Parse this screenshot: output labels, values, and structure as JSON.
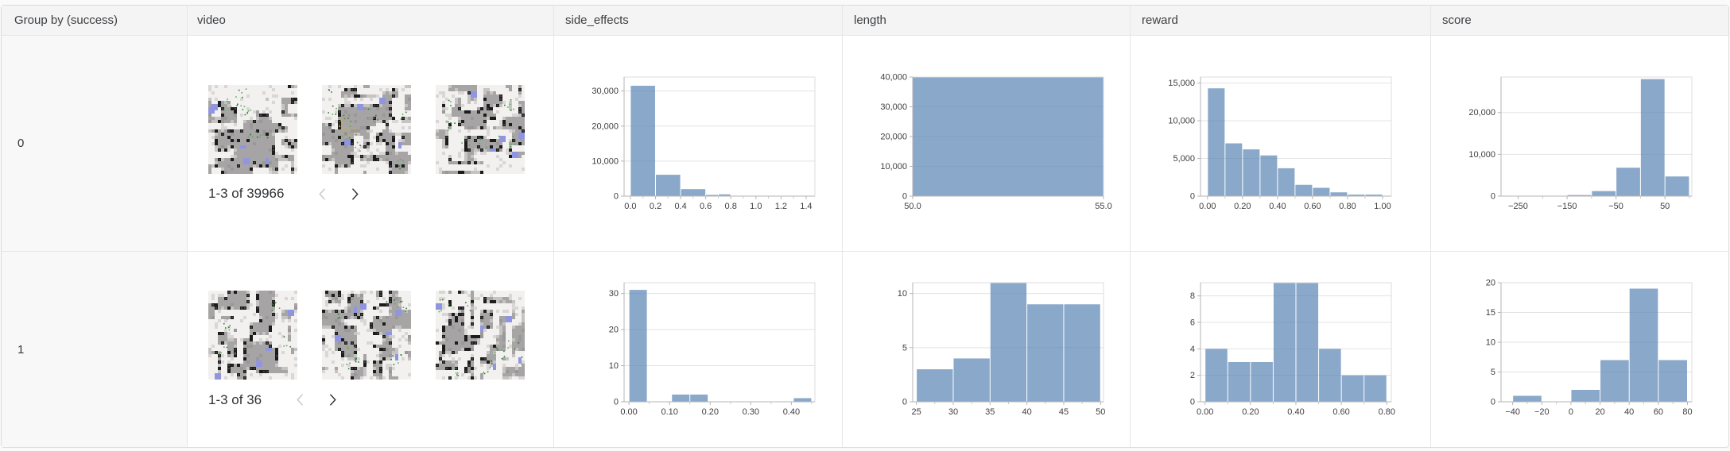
{
  "columns": [
    {
      "label": "Group by (success)"
    },
    {
      "label": "video"
    },
    {
      "label": "side_effects"
    },
    {
      "label": "length"
    },
    {
      "label": "reward"
    },
    {
      "label": "score"
    }
  ],
  "colors": {
    "bar": "#5d87b6",
    "bar_opacity": 0.72,
    "header_bg": "#f4f4f5",
    "group_col_bg": "#f8f8f8",
    "cell_border": "#e6e6e6",
    "axis": "#b5b5b5",
    "grid": "#e3e3e3",
    "tick_text": "#3f3f3f",
    "thumb_blue": "#9095e2",
    "thumb_gray": "#a7a4a5"
  },
  "rows": [
    {
      "group": "0",
      "video": {
        "pagination": "1-3 of 39966",
        "thumbnails": 3,
        "prev_enabled": false,
        "next_enabled": true
      },
      "charts": {
        "side_effects": {
          "type": "histogram",
          "xdomain": [
            -0.05,
            1.47
          ],
          "ymax": 34000,
          "bars": [
            [
              0,
              0.2,
              31500
            ],
            [
              0.2,
              0.4,
              6100
            ],
            [
              0.4,
              0.6,
              2000
            ],
            [
              0.6,
              0.7,
              350
            ],
            [
              0.7,
              0.8,
              500
            ]
          ],
          "yticks": [
            [
              0,
              "0"
            ],
            [
              10000,
              "10,000"
            ],
            [
              20000,
              "20,000"
            ],
            [
              30000,
              "30,000"
            ]
          ],
          "xticks": [
            [
              0,
              "0.0"
            ],
            [
              0.2,
              "0.2"
            ],
            [
              0.4,
              "0.4"
            ],
            [
              0.6,
              "0.6"
            ],
            [
              0.8,
              "0.8"
            ],
            [
              1.0,
              "1.0"
            ],
            [
              1.2,
              "1.2"
            ],
            [
              1.4,
              "1.4"
            ]
          ],
          "minor": true
        },
        "length": {
          "type": "histogram",
          "xdomain": [
            50,
            55
          ],
          "ymax": 40000,
          "bars": [
            [
              50,
              55,
              40000
            ]
          ],
          "yticks": [
            [
              0,
              "0"
            ],
            [
              10000,
              "10,000"
            ],
            [
              20000,
              "20,000"
            ],
            [
              30000,
              "30,000"
            ],
            [
              40000,
              "40,000"
            ]
          ],
          "xticks": [
            [
              50,
              "50.0"
            ],
            [
              55,
              "55.0"
            ]
          ],
          "minor": false
        },
        "reward": {
          "type": "histogram",
          "xdomain": [
            -0.04,
            1.05
          ],
          "ymax": 15800,
          "bars": [
            [
              0,
              0.1,
              14300
            ],
            [
              0.1,
              0.2,
              7000
            ],
            [
              0.2,
              0.3,
              6200
            ],
            [
              0.3,
              0.4,
              5400
            ],
            [
              0.4,
              0.5,
              3700
            ],
            [
              0.5,
              0.6,
              1500
            ],
            [
              0.6,
              0.7,
              1100
            ],
            [
              0.7,
              0.8,
              500
            ],
            [
              0.8,
              0.9,
              200
            ],
            [
              0.9,
              1.0,
              200
            ]
          ],
          "yticks": [
            [
              0,
              "0"
            ],
            [
              5000,
              "5,000"
            ],
            [
              10000,
              "10,000"
            ],
            [
              15000,
              "15,000"
            ]
          ],
          "xticks": [
            [
              0,
              "0.00"
            ],
            [
              0.2,
              "0.20"
            ],
            [
              0.4,
              "0.40"
            ],
            [
              0.6,
              "0.60"
            ],
            [
              0.8,
              "0.80"
            ],
            [
              1.0,
              "1.00"
            ]
          ],
          "minor": true
        },
        "score": {
          "type": "histogram",
          "xdomain": [
            -285,
            105
          ],
          "ymax": 28500,
          "bars": [
            [
              -150,
              -100,
              250
            ],
            [
              -100,
              -50,
              1200
            ],
            [
              -50,
              0,
              6800
            ],
            [
              0,
              50,
              28000
            ],
            [
              50,
              100,
              4700
            ]
          ],
          "yticks": [
            [
              0,
              "0"
            ],
            [
              10000,
              "10,000"
            ],
            [
              20000,
              "20,000"
            ]
          ],
          "xticks": [
            [
              -250,
              "−250"
            ],
            [
              -150,
              "−150"
            ],
            [
              -50,
              "−50"
            ],
            [
              50,
              "50"
            ]
          ],
          "minor": true
        }
      }
    },
    {
      "group": "1",
      "video": {
        "pagination": "1-3 of 36",
        "thumbnails": 3,
        "prev_enabled": false,
        "next_enabled": true
      },
      "charts": {
        "side_effects": {
          "type": "histogram",
          "xdomain": [
            -0.012,
            0.458
          ],
          "ymax": 33,
          "bars": [
            [
              0,
              0.045,
              31
            ],
            [
              0.105,
              0.15,
              2
            ],
            [
              0.15,
              0.195,
              2
            ],
            [
              0.405,
              0.45,
              1
            ]
          ],
          "yticks": [
            [
              0,
              "0"
            ],
            [
              10,
              "10"
            ],
            [
              20,
              "20"
            ],
            [
              30,
              "30"
            ]
          ],
          "xticks": [
            [
              0,
              "0.00"
            ],
            [
              0.1,
              "0.10"
            ],
            [
              0.2,
              "0.20"
            ],
            [
              0.3,
              "0.30"
            ],
            [
              0.4,
              "0.40"
            ]
          ],
          "minor": true
        },
        "length": {
          "type": "histogram",
          "xdomain": [
            24.5,
            50.4
          ],
          "ymax": 11,
          "bars": [
            [
              25,
              30,
              3
            ],
            [
              30,
              35,
              4
            ],
            [
              35,
              40,
              11
            ],
            [
              40,
              45,
              9
            ],
            [
              45,
              50,
              9
            ]
          ],
          "yticks": [
            [
              0,
              "0"
            ],
            [
              5,
              "5"
            ],
            [
              10,
              "10"
            ]
          ],
          "xticks": [
            [
              25,
              "25"
            ],
            [
              30,
              "30"
            ],
            [
              35,
              "35"
            ],
            [
              40,
              "40"
            ],
            [
              45,
              "45"
            ],
            [
              50,
              "50"
            ]
          ],
          "minor": true
        },
        "reward": {
          "type": "histogram",
          "xdomain": [
            -0.02,
            0.82
          ],
          "ymax": 9,
          "bars": [
            [
              0,
              0.1,
              4
            ],
            [
              0.1,
              0.2,
              3
            ],
            [
              0.2,
              0.3,
              3
            ],
            [
              0.3,
              0.4,
              9
            ],
            [
              0.4,
              0.5,
              9
            ],
            [
              0.5,
              0.6,
              4
            ],
            [
              0.6,
              0.7,
              2
            ],
            [
              0.7,
              0.8,
              2
            ]
          ],
          "yticks": [
            [
              0,
              "0"
            ],
            [
              2,
              "2"
            ],
            [
              4,
              "4"
            ],
            [
              6,
              "6"
            ],
            [
              8,
              "8"
            ]
          ],
          "xticks": [
            [
              0,
              "0.00"
            ],
            [
              0.2,
              "0.20"
            ],
            [
              0.4,
              "0.40"
            ],
            [
              0.6,
              "0.60"
            ],
            [
              0.8,
              "0.80"
            ]
          ],
          "minor": true
        },
        "score": {
          "type": "histogram",
          "xdomain": [
            -48,
            83
          ],
          "ymax": 20,
          "bars": [
            [
              -40,
              -20,
              1
            ],
            [
              0,
              20,
              2
            ],
            [
              20,
              40,
              7
            ],
            [
              40,
              60,
              19
            ],
            [
              60,
              80,
              7
            ]
          ],
          "yticks": [
            [
              0,
              "0"
            ],
            [
              5,
              "5"
            ],
            [
              10,
              "10"
            ],
            [
              15,
              "15"
            ],
            [
              20,
              "20"
            ]
          ],
          "xticks": [
            [
              -40,
              "−40"
            ],
            [
              -20,
              "−20"
            ],
            [
              0,
              "0"
            ],
            [
              20,
              "20"
            ],
            [
              40,
              "40"
            ],
            [
              60,
              "60"
            ],
            [
              80,
              "80"
            ]
          ],
          "minor": true
        }
      }
    }
  ]
}
